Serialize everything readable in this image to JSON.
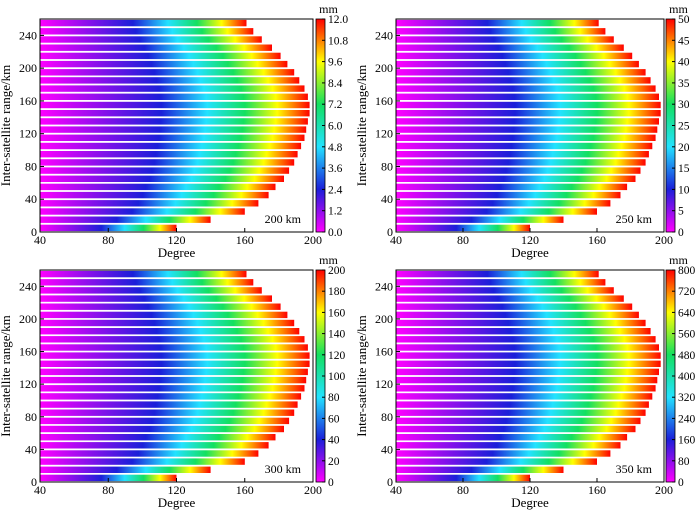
{
  "figure": {
    "colormap_stops": [
      "#ff00ff",
      "#1b1fd9",
      "#23e2ff",
      "#13e060",
      "#ffff00",
      "#ff0000"
    ],
    "bar_ranges": [
      [
        40,
        120
      ],
      [
        40,
        140
      ],
      [
        40,
        160
      ],
      [
        40,
        168
      ],
      [
        40,
        174
      ],
      [
        40,
        178
      ],
      [
        40,
        183
      ],
      [
        40,
        186
      ],
      [
        40,
        189
      ],
      [
        40,
        191
      ],
      [
        40,
        193
      ],
      [
        40,
        195
      ],
      [
        40,
        196
      ],
      [
        40,
        197
      ],
      [
        40,
        198
      ],
      [
        40,
        198
      ],
      [
        40,
        197
      ],
      [
        40,
        195
      ],
      [
        40,
        192
      ],
      [
        40,
        189
      ],
      [
        40,
        185
      ],
      [
        40,
        181
      ],
      [
        40,
        176
      ],
      [
        40,
        170
      ],
      [
        40,
        165
      ],
      [
        40,
        161
      ]
    ],
    "bar_centers": [
      10,
      20,
      30,
      40,
      50,
      60,
      70,
      80,
      90,
      100,
      110,
      120,
      130,
      140,
      150,
      160,
      170,
      180,
      190,
      200,
      210,
      220,
      230,
      240,
      250,
      260
    ]
  },
  "chart_data": [
    {
      "type": "heatmap",
      "panel_label": "200 km",
      "xlabel": "Degree",
      "ylabel": "Inter-satellite range/km",
      "xlim": [
        40,
        200
      ],
      "xticks": [
        "40",
        "80",
        "120",
        "160",
        "200"
      ],
      "ylim": [
        0,
        260
      ],
      "yticks": [
        "0",
        "40",
        "80",
        "120",
        "160",
        "200",
        "240"
      ],
      "colorbar": {
        "unit": "mm",
        "range": [
          0,
          12
        ],
        "ticks": [
          "0.0",
          "1.2",
          "2.4",
          "3.6",
          "4.8",
          "6.0",
          "7.2",
          "8.4",
          "9.6",
          "10.8",
          "12.0"
        ]
      }
    },
    {
      "type": "heatmap",
      "panel_label": "250 km",
      "xlabel": "Degree",
      "ylabel": "Inter-satellite range/km",
      "xlim": [
        40,
        200
      ],
      "xticks": [
        "40",
        "80",
        "120",
        "160",
        "200"
      ],
      "ylim": [
        0,
        260
      ],
      "yticks": [
        "0",
        "40",
        "80",
        "120",
        "160",
        "200",
        "240"
      ],
      "colorbar": {
        "unit": "mm",
        "range": [
          0,
          50
        ],
        "ticks": [
          "0",
          "5",
          "10",
          "15",
          "20",
          "25",
          "30",
          "35",
          "40",
          "45",
          "50"
        ]
      }
    },
    {
      "type": "heatmap",
      "panel_label": "300 km",
      "xlabel": "Degree",
      "ylabel": "Inter-satellite range/km",
      "xlim": [
        40,
        200
      ],
      "xticks": [
        "40",
        "80",
        "120",
        "160",
        "200"
      ],
      "ylim": [
        0,
        260
      ],
      "yticks": [
        "0",
        "40",
        "80",
        "120",
        "160",
        "200",
        "240"
      ],
      "colorbar": {
        "unit": "mm",
        "range": [
          0,
          200
        ],
        "ticks": [
          "0",
          "20",
          "40",
          "60",
          "80",
          "100",
          "120",
          "140",
          "160",
          "180",
          "200"
        ]
      }
    },
    {
      "type": "heatmap",
      "panel_label": "350 km",
      "xlabel": "Degree",
      "ylabel": "Inter-satellite range/km",
      "xlim": [
        40,
        200
      ],
      "xticks": [
        "40",
        "80",
        "120",
        "160",
        "200"
      ],
      "ylim": [
        0,
        260
      ],
      "yticks": [
        "0",
        "40",
        "80",
        "120",
        "160",
        "200",
        "240"
      ],
      "colorbar": {
        "unit": "mm",
        "range": [
          0,
          800
        ],
        "ticks": [
          "0",
          "80",
          "160",
          "240",
          "320",
          "400",
          "480",
          "560",
          "640",
          "720",
          "800"
        ]
      }
    }
  ]
}
